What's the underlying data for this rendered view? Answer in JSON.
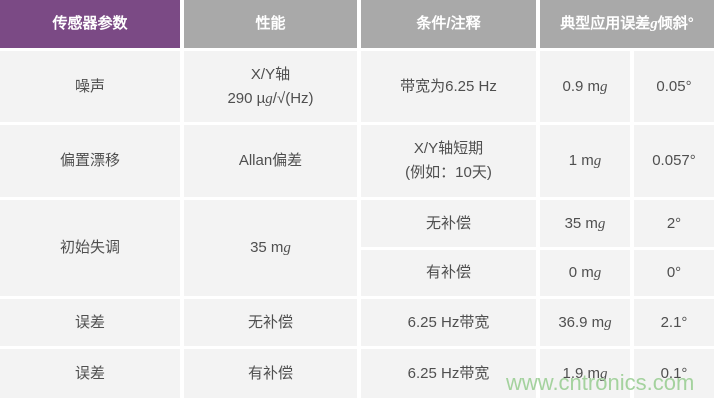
{
  "colors": {
    "header_purple": "#7b4a85",
    "header_gray": "#a9a9a9",
    "cell_bg": "#f3f3f3",
    "cell_text": "#4f4f4f",
    "header_text": "#ffffff",
    "watermark_green": "#9ccf95"
  },
  "header": {
    "c1": "传感器参数",
    "c2": "性能",
    "c3": "条件/注释",
    "c4_pre": "典型应用误差",
    "c4_g": "g",
    "c4_post": "倾斜°"
  },
  "rows": [
    {
      "param": "噪声",
      "perf_l1": "X/Y轴",
      "perf_l2_pre": "290 µ",
      "perf_l2_g": "g",
      "perf_l2_post": "/√(Hz)",
      "cond": "带宽为6.25 Hz",
      "err_pre": "0.9 m",
      "err_g": "g",
      "tilt": "0.05°"
    },
    {
      "param": "偏置漂移",
      "perf": "Allan偏差",
      "cond_l1": "X/Y轴短期",
      "cond_l2": "(例如：10天)",
      "err_pre": "1 m",
      "err_g": "g",
      "tilt": "0.057°"
    },
    {
      "param": "初始失调",
      "perf_pre": "35 m",
      "perf_g": "g",
      "sub": [
        {
          "cond": "无补偿",
          "err_pre": "35 m",
          "err_g": "g",
          "tilt": "2°"
        },
        {
          "cond": "有补偿",
          "err_pre": "0 m",
          "err_g": "g",
          "tilt": "0°"
        }
      ]
    },
    {
      "param": "误差",
      "perf": "无补偿",
      "cond": "6.25 Hz带宽",
      "err_pre": "36.9 m",
      "err_g": "g",
      "tilt": "2.1°"
    },
    {
      "param": "误差",
      "perf": "有补偿",
      "cond": "6.25 Hz带宽",
      "err_pre": "1.9 m",
      "err_g": "g",
      "tilt": "0.1°"
    }
  ],
  "watermark": "www.cntronics.com",
  "chart_data": {
    "type": "table",
    "columns": [
      "传感器参数",
      "性能",
      "条件/注释",
      "典型应用误差g",
      "倾斜°"
    ],
    "merged_header_last_two_columns": "典型应用误差g倾斜°",
    "rows": [
      [
        "噪声",
        "X/Y轴 290 µg/√(Hz)",
        "带宽为6.25 Hz",
        "0.9 mg",
        "0.05°"
      ],
      [
        "偏置漂移",
        "Allan偏差",
        "X/Y轴短期 (例如：10天)",
        "1 mg",
        "0.057°"
      ],
      [
        "初始失调",
        "35 mg",
        "无补偿",
        "35 mg",
        "2°"
      ],
      [
        "初始失调",
        "35 mg",
        "有补偿",
        "0 mg",
        "0°"
      ],
      [
        "误差",
        "无补偿",
        "6.25 Hz带宽",
        "36.9 mg",
        "2.1°"
      ],
      [
        "误差",
        "有补偿",
        "6.25 Hz带宽",
        "1.9 mg",
        "0.1°"
      ]
    ]
  }
}
